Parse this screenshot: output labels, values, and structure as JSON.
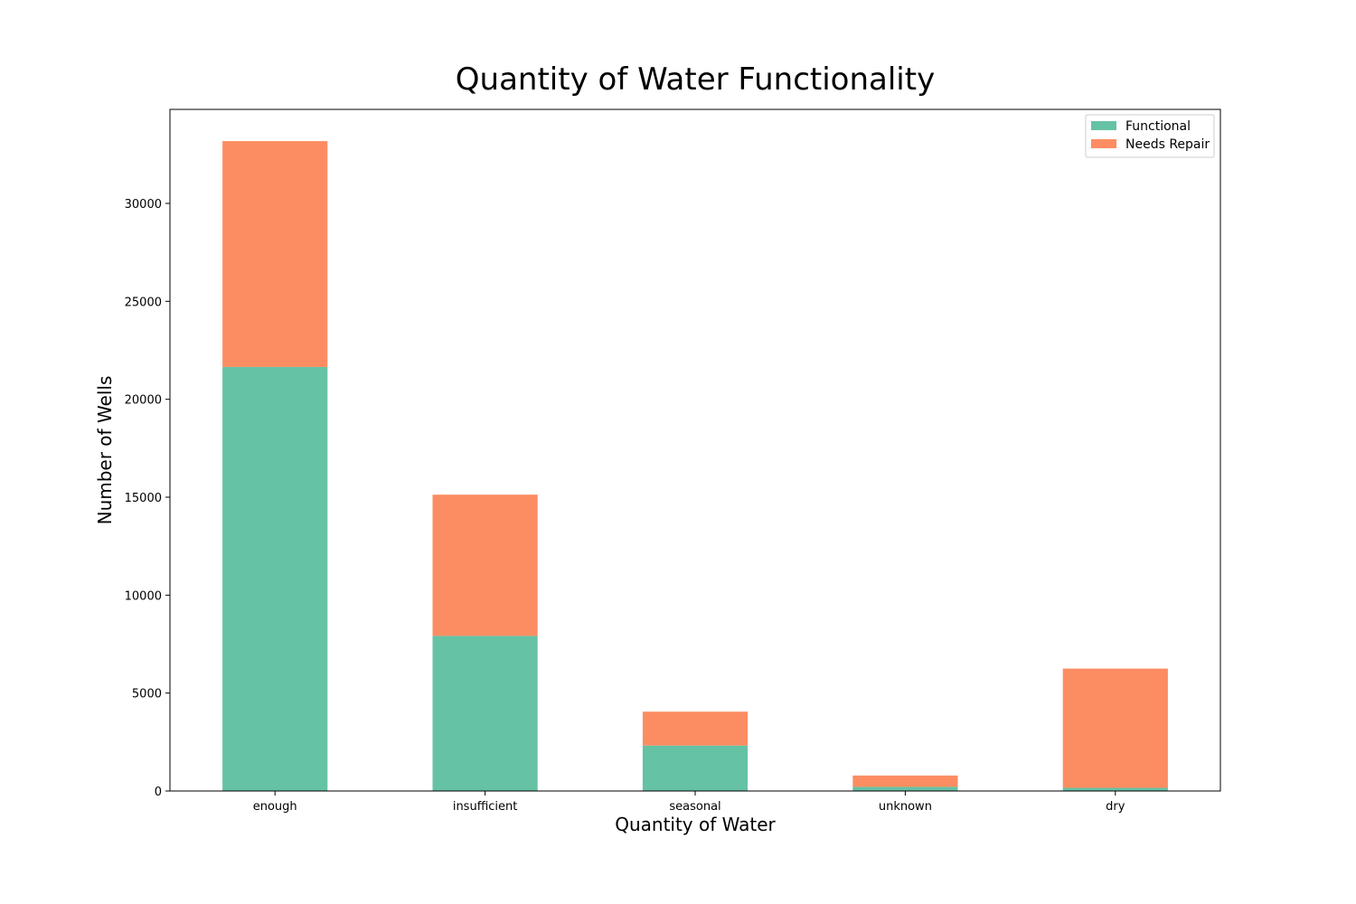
{
  "chart_data": {
    "type": "bar",
    "stacked": true,
    "title": "Quantity of Water Functionality",
    "xlabel": "Quantity of Water",
    "ylabel": "Number of Wells",
    "categories": [
      "enough",
      "insufficient",
      "seasonal",
      "unknown",
      "dry"
    ],
    "series": [
      {
        "name": "Functional",
        "color": "#66c2a5",
        "values": [
          21650,
          7920,
          2320,
          210,
          160
        ]
      },
      {
        "name": "Needs Repair",
        "color": "#fc8d62",
        "values": [
          11530,
          7210,
          1730,
          580,
          6090
        ]
      }
    ],
    "ylim": [
      0,
      34800
    ],
    "yticks": [
      0,
      5000,
      10000,
      15000,
      20000,
      25000,
      30000
    ],
    "grid": false,
    "legend_position": "top-right"
  }
}
